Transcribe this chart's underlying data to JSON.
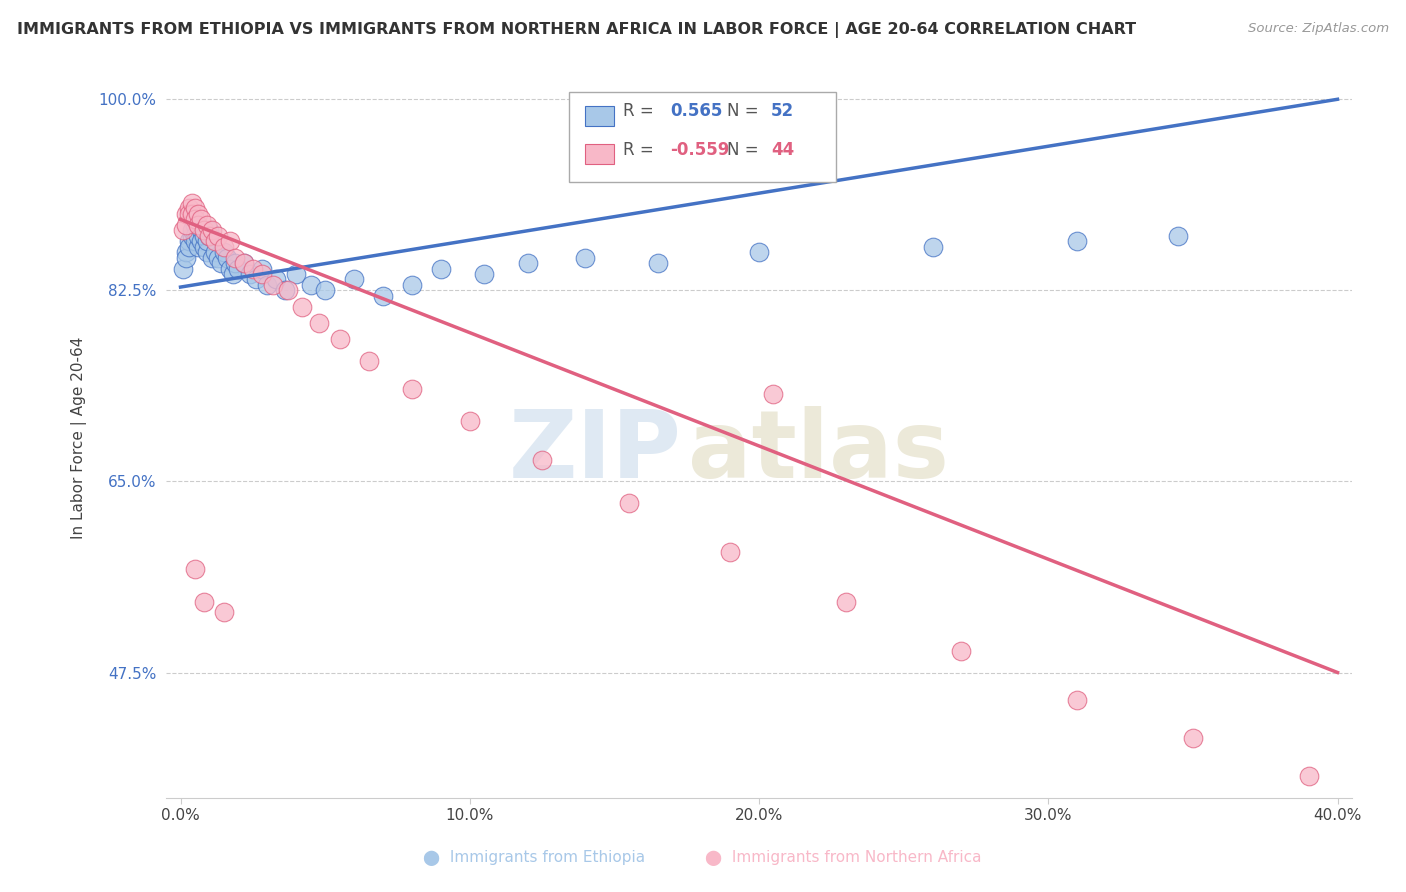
{
  "title": "IMMIGRANTS FROM ETHIOPIA VS IMMIGRANTS FROM NORTHERN AFRICA IN LABOR FORCE | AGE 20-64 CORRELATION CHART",
  "source": "Source: ZipAtlas.com",
  "ylabel": "In Labor Force | Age 20-64",
  "xlim": [
    -0.005,
    0.405
  ],
  "ylim": [
    0.36,
    1.02
  ],
  "yticks": [
    0.475,
    0.65,
    0.825,
    1.0
  ],
  "ytick_labels": [
    "47.5%",
    "65.0%",
    "82.5%",
    "100.0%"
  ],
  "xticks": [
    0.0,
    0.1,
    0.2,
    0.3,
    0.4
  ],
  "xtick_labels": [
    "0.0%",
    "10.0%",
    "20.0%",
    "30.0%",
    "40.0%"
  ],
  "blue_color": "#a8c8e8",
  "pink_color": "#f8b8c8",
  "line_blue": "#4472c4",
  "line_pink": "#e06080",
  "watermark_zip": "ZIP",
  "watermark_atlas": "atlas",
  "eth_x": [
    0.001,
    0.002,
    0.002,
    0.003,
    0.003,
    0.004,
    0.004,
    0.005,
    0.005,
    0.005,
    0.006,
    0.006,
    0.007,
    0.007,
    0.008,
    0.008,
    0.009,
    0.009,
    0.01,
    0.01,
    0.011,
    0.012,
    0.013,
    0.014,
    0.015,
    0.016,
    0.017,
    0.018,
    0.019,
    0.02,
    0.022,
    0.024,
    0.026,
    0.028,
    0.03,
    0.033,
    0.036,
    0.04,
    0.045,
    0.05,
    0.06,
    0.07,
    0.08,
    0.09,
    0.105,
    0.12,
    0.14,
    0.165,
    0.2,
    0.26,
    0.31,
    0.345
  ],
  "eth_y": [
    0.845,
    0.86,
    0.855,
    0.87,
    0.865,
    0.875,
    0.88,
    0.885,
    0.875,
    0.87,
    0.865,
    0.875,
    0.88,
    0.87,
    0.865,
    0.875,
    0.86,
    0.87,
    0.875,
    0.88,
    0.855,
    0.86,
    0.855,
    0.85,
    0.86,
    0.855,
    0.845,
    0.84,
    0.85,
    0.845,
    0.85,
    0.84,
    0.835,
    0.845,
    0.83,
    0.835,
    0.825,
    0.84,
    0.83,
    0.825,
    0.835,
    0.82,
    0.83,
    0.845,
    0.84,
    0.85,
    0.855,
    0.85,
    0.86,
    0.865,
    0.87,
    0.875
  ],
  "na_x": [
    0.001,
    0.002,
    0.002,
    0.003,
    0.003,
    0.004,
    0.004,
    0.005,
    0.005,
    0.006,
    0.006,
    0.007,
    0.008,
    0.009,
    0.01,
    0.011,
    0.012,
    0.013,
    0.015,
    0.017,
    0.019,
    0.022,
    0.025,
    0.028,
    0.032,
    0.037,
    0.042,
    0.048,
    0.055,
    0.065,
    0.08,
    0.1,
    0.125,
    0.155,
    0.19,
    0.23,
    0.27,
    0.31,
    0.35,
    0.39,
    0.005,
    0.008,
    0.015,
    0.205
  ],
  "na_y": [
    0.88,
    0.895,
    0.885,
    0.9,
    0.895,
    0.905,
    0.895,
    0.9,
    0.89,
    0.895,
    0.885,
    0.89,
    0.88,
    0.885,
    0.875,
    0.88,
    0.87,
    0.875,
    0.865,
    0.87,
    0.855,
    0.85,
    0.845,
    0.84,
    0.83,
    0.825,
    0.81,
    0.795,
    0.78,
    0.76,
    0.735,
    0.705,
    0.67,
    0.63,
    0.585,
    0.54,
    0.495,
    0.45,
    0.415,
    0.38,
    0.57,
    0.54,
    0.53,
    0.73
  ],
  "blue_line_x": [
    0.0,
    0.4
  ],
  "blue_line_y": [
    0.828,
    1.0
  ],
  "pink_line_x": [
    0.0,
    0.4
  ],
  "pink_line_y": [
    0.89,
    0.475
  ]
}
